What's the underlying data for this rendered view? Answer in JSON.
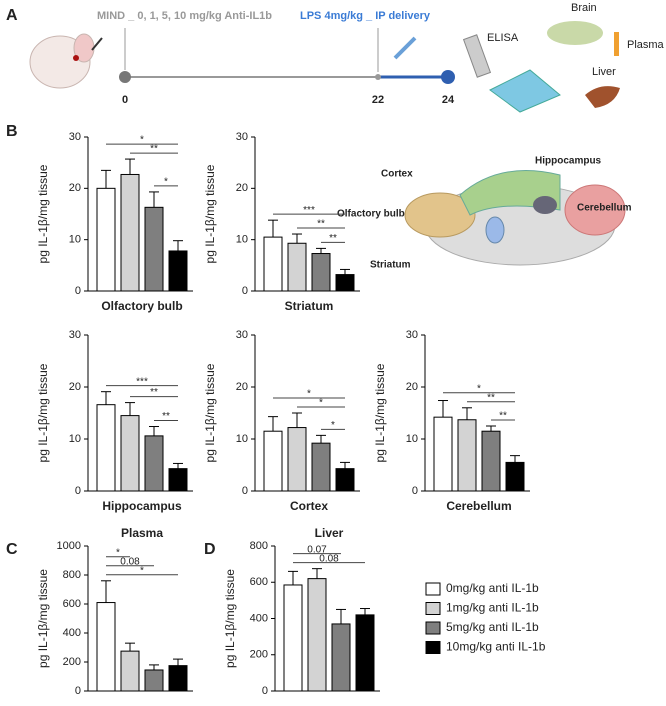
{
  "panel_labels": [
    "A",
    "B",
    "C",
    "D"
  ],
  "timeline": {
    "treatment": "MIND _ 0, 1, 5, 10 mg/kg Anti-IL1b",
    "lps": "LPS 4mg/kg _ IP delivery",
    "days": [
      "0",
      "22",
      "24"
    ]
  },
  "icons": {
    "elisa": "ELISA",
    "brain": "Brain",
    "plasma": "Plasma",
    "liver": "Liver"
  },
  "brain_regions": [
    "Cortex",
    "Hippocampus",
    "Olfactory bulb",
    "Cerebellum",
    "Striatum"
  ],
  "legend": [
    {
      "label": "0mg/kg anti IL-1b",
      "color": "#ffffff"
    },
    {
      "label": "1mg/kg anti IL-1b",
      "color": "#d3d3d3"
    },
    {
      "label": "5mg/kg anti IL-1b",
      "color": "#7f7f7f"
    },
    {
      "label": "10mg/kg anti IL-1b",
      "color": "#000000"
    }
  ],
  "chart_data": [
    {
      "type": "bar",
      "xlabel": "Olfactory bulb",
      "ylabel": "pg IL-1β/mg tissue",
      "values": [
        20,
        22.7,
        16.3,
        7.8
      ],
      "errors": [
        3.5,
        3,
        3,
        2
      ],
      "ylim": [
        0,
        30
      ],
      "yticks": [
        0,
        10,
        20,
        30
      ],
      "annotations": [
        "*",
        "**",
        "*"
      ]
    },
    {
      "type": "bar",
      "xlabel": "Striatum",
      "ylabel": "pg IL-1β/mg tissue",
      "values": [
        10.5,
        9.3,
        7.3,
        3.2
      ],
      "errors": [
        3.3,
        1.8,
        1,
        1
      ],
      "ylim": [
        0,
        30
      ],
      "yticks": [
        0,
        10,
        20,
        30
      ],
      "annotations": [
        "***",
        "**",
        "**"
      ]
    },
    {
      "type": "bar",
      "xlabel": "Hippocampus",
      "ylabel": "pg IL-1β/mg tissue",
      "values": [
        16.6,
        14.5,
        10.6,
        4.3
      ],
      "errors": [
        2.5,
        2.5,
        1.8,
        1
      ],
      "ylim": [
        0,
        30
      ],
      "yticks": [
        0,
        10,
        20,
        30
      ],
      "annotations": [
        "***",
        "**",
        "**"
      ]
    },
    {
      "type": "bar",
      "xlabel": "Cortex",
      "ylabel": "pg IL-1β/mg tissue",
      "values": [
        11.5,
        12.2,
        9.2,
        4.3
      ],
      "errors": [
        2.8,
        2.8,
        1.5,
        1.2
      ],
      "ylim": [
        0,
        30
      ],
      "yticks": [
        0,
        10,
        20,
        30
      ],
      "annotations": [
        "*",
        "*",
        "*"
      ]
    },
    {
      "type": "bar",
      "xlabel": "Cerebellum",
      "ylabel": "pg IL-1β/mg tissue",
      "values": [
        14.2,
        13.7,
        11.5,
        5.5
      ],
      "errors": [
        3.2,
        2.3,
        1,
        1.3
      ],
      "ylim": [
        0,
        30
      ],
      "yticks": [
        0,
        10,
        20,
        30
      ],
      "annotations": [
        "*",
        "**",
        "**"
      ]
    },
    {
      "type": "bar",
      "title": "Plasma",
      "ylabel": "pg IL-1β/mg tissue",
      "values": [
        610,
        275,
        145,
        175
      ],
      "errors": [
        150,
        55,
        35,
        45
      ],
      "ylim": [
        0,
        1000
      ],
      "yticks": [
        0,
        200,
        400,
        600,
        800,
        1000
      ],
      "annotations": [
        "*",
        "0.08",
        "*"
      ]
    },
    {
      "type": "bar",
      "title": "Liver",
      "ylabel": "pg IL-1β/mg tissue",
      "values": [
        585,
        620,
        370,
        420
      ],
      "errors": [
        75,
        55,
        80,
        35
      ],
      "ylim": [
        0,
        800
      ],
      "yticks": [
        0,
        200,
        400,
        600,
        800
      ],
      "annotations": [
        "0.07",
        "0.08"
      ]
    }
  ]
}
